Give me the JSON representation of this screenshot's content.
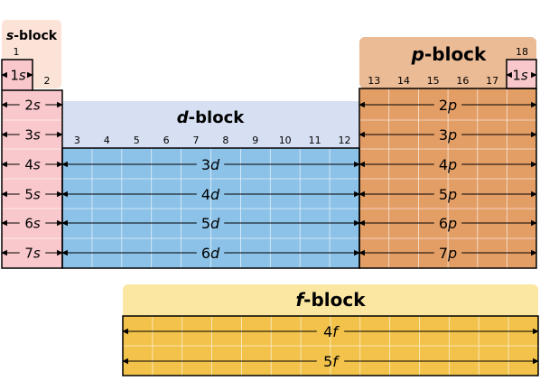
{
  "blocks": {
    "s": {
      "title_letter": "s",
      "title_suffix": "-block",
      "group_numbers": [
        "1",
        "2"
      ]
    },
    "d": {
      "title_letter": "d",
      "title_suffix": "-block",
      "group_numbers": [
        "3",
        "4",
        "5",
        "6",
        "7",
        "8",
        "9",
        "10",
        "11",
        "12"
      ]
    },
    "p": {
      "title_letter": "p",
      "title_suffix": "-block",
      "group_numbers": [
        "13",
        "14",
        "15",
        "16",
        "17"
      ],
      "helium_group": "18"
    },
    "f": {
      "title_letter": "f",
      "title_suffix": "-block"
    }
  },
  "s_rows": [
    {
      "n": "1",
      "l": "s"
    },
    {
      "n": "2",
      "l": "s"
    },
    {
      "n": "3",
      "l": "s"
    },
    {
      "n": "4",
      "l": "s"
    },
    {
      "n": "5",
      "l": "s"
    },
    {
      "n": "6",
      "l": "s"
    },
    {
      "n": "7",
      "l": "s"
    }
  ],
  "helium_row": {
    "n": "1",
    "l": "s"
  },
  "d_rows": [
    {
      "n": "3",
      "l": "d"
    },
    {
      "n": "4",
      "l": "d"
    },
    {
      "n": "5",
      "l": "d"
    },
    {
      "n": "6",
      "l": "d"
    }
  ],
  "p_rows": [
    {
      "n": "2",
      "l": "p"
    },
    {
      "n": "3",
      "l": "p"
    },
    {
      "n": "4",
      "l": "p"
    },
    {
      "n": "5",
      "l": "p"
    },
    {
      "n": "6",
      "l": "p"
    },
    {
      "n": "7",
      "l": "p"
    }
  ],
  "f_rows": [
    {
      "n": "4",
      "l": "f"
    },
    {
      "n": "5",
      "l": "f"
    }
  ],
  "colors": {
    "s_fill": "#f9c8cc",
    "s_header": "#fbe3d8",
    "d_fill": "#8cc2e8",
    "d_header": "#d6e0f2",
    "p_fill": "#e39e66",
    "p_header": "#ebbb95",
    "f_fill": "#f2c24a",
    "f_header": "#fbe6a2",
    "outline": "#000000",
    "grid": "#ffffff"
  }
}
